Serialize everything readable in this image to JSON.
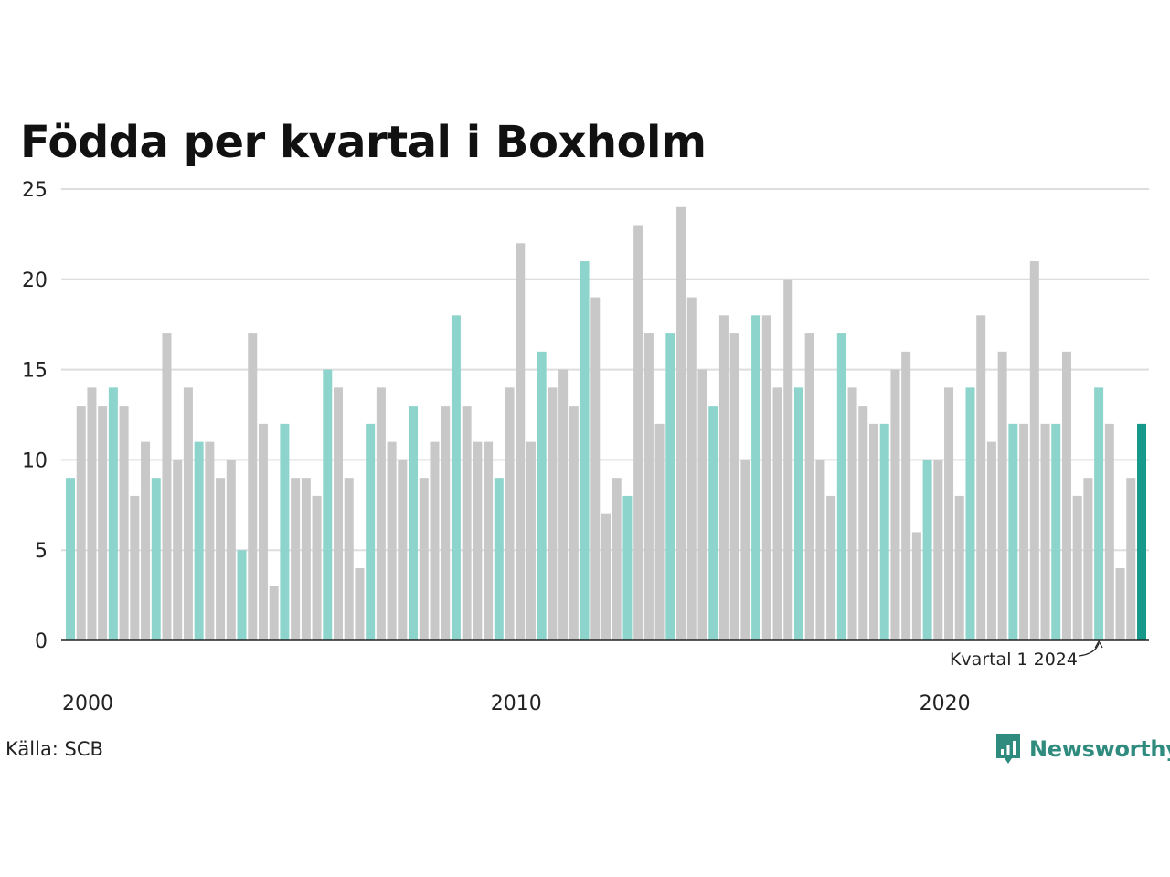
{
  "colors": {
    "q1": "#8dd5cc",
    "other": "#c8c8c8",
    "highlight": "#16998a",
    "grid": "#dddddd",
    "axis": "#222222",
    "brand": "#2e8b7e"
  },
  "source": "Källa: SCB",
  "brand": {
    "name": "Newsworthy",
    "icon": "newsworthy-logo-icon"
  },
  "chart_data": {
    "type": "bar",
    "title": "Födda per kvartal i Boxholm",
    "xlabel": "",
    "ylabel": "",
    "ylim": [
      0,
      25
    ],
    "yticks": [
      0,
      5,
      10,
      15,
      20,
      25
    ],
    "xticks": [
      {
        "label": "2000",
        "year": 2000
      },
      {
        "label": "2010",
        "year": 2010
      },
      {
        "label": "2020",
        "year": 2020
      }
    ],
    "grid": true,
    "legend": "none",
    "first_quarter": "2000 Q1",
    "values": [
      9,
      13,
      14,
      13,
      14,
      13,
      8,
      11,
      9,
      17,
      10,
      14,
      11,
      11,
      9,
      10,
      5,
      17,
      12,
      3,
      12,
      9,
      9,
      8,
      15,
      14,
      9,
      4,
      12,
      14,
      11,
      10,
      13,
      9,
      11,
      13,
      18,
      13,
      11,
      11,
      9,
      14,
      22,
      11,
      16,
      14,
      15,
      13,
      21,
      19,
      7,
      9,
      8,
      23,
      17,
      12,
      17,
      24,
      19,
      15,
      13,
      18,
      17,
      10,
      18,
      18,
      14,
      20,
      14,
      17,
      10,
      8,
      17,
      14,
      13,
      12,
      12,
      15,
      16,
      6,
      10,
      10,
      14,
      8,
      14,
      18,
      11,
      16,
      12,
      12,
      21,
      12,
      12,
      16,
      8,
      9,
      14,
      12,
      4,
      9,
      12
    ],
    "annotation": {
      "label": "Kvartal 1 2024",
      "index": 96
    }
  }
}
